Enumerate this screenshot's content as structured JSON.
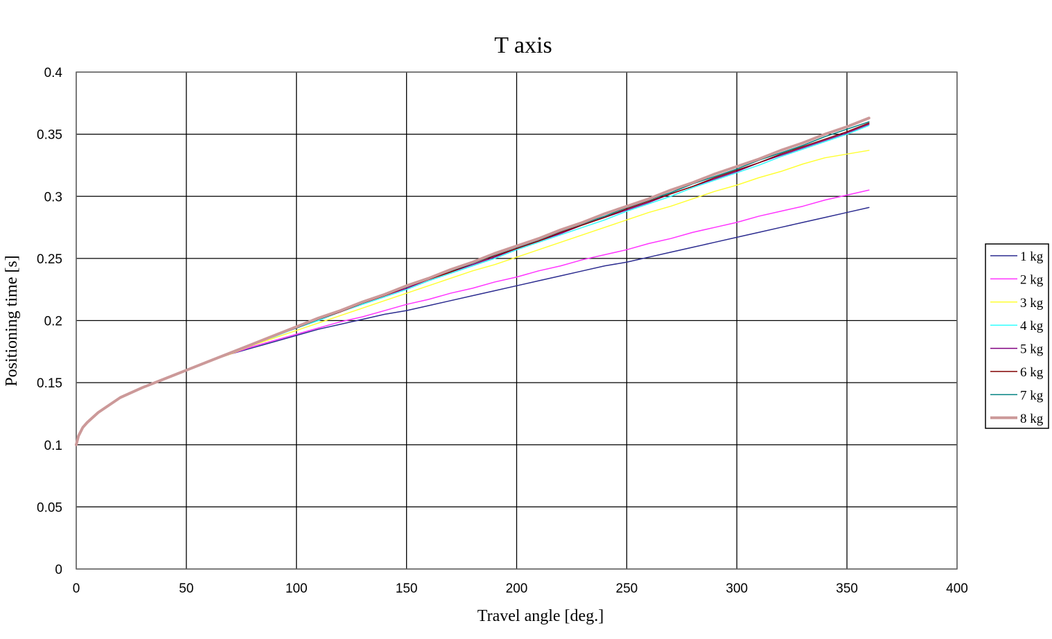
{
  "chart_data": {
    "type": "line",
    "title": "T axis",
    "xlabel": "Travel angle [deg.]",
    "ylabel": "Positioning time [s]",
    "xlim": [
      0,
      400
    ],
    "ylim": [
      0,
      0.4
    ],
    "xticks": [
      "0",
      "50",
      "100",
      "150",
      "200",
      "250",
      "300",
      "350",
      "400"
    ],
    "yticks": [
      "0",
      "0.05",
      "0.1",
      "0.15",
      "0.2",
      "0.25",
      "0.3",
      "0.35",
      "0.4"
    ],
    "grid": true,
    "legend_position": "right",
    "x": [
      0,
      1,
      3,
      5,
      10,
      20,
      30,
      40,
      50,
      60,
      70,
      80,
      90,
      100,
      110,
      120,
      130,
      140,
      150,
      160,
      170,
      180,
      190,
      200,
      210,
      220,
      230,
      240,
      250,
      260,
      270,
      280,
      290,
      300,
      310,
      320,
      330,
      340,
      350,
      360
    ],
    "series": [
      {
        "name": "1 kg",
        "color": "#2b2b8f",
        "width": 1.5,
        "values": [
          0.1,
          0.107,
          0.114,
          0.118,
          0.126,
          0.138,
          0.146,
          0.153,
          0.16,
          0.167,
          0.173,
          0.178,
          0.183,
          0.188,
          0.193,
          0.197,
          0.201,
          0.205,
          0.208,
          0.212,
          0.216,
          0.22,
          0.224,
          0.228,
          0.232,
          0.236,
          0.24,
          0.244,
          0.247,
          0.251,
          0.255,
          0.259,
          0.263,
          0.267,
          0.271,
          0.275,
          0.279,
          0.283,
          0.287,
          0.291
        ]
      },
      {
        "name": "2 kg",
        "color": "#ff33ff",
        "width": 1.5,
        "values": [
          0.1,
          0.107,
          0.114,
          0.118,
          0.126,
          0.138,
          0.146,
          0.153,
          0.16,
          0.167,
          0.173,
          0.179,
          0.184,
          0.189,
          0.194,
          0.199,
          0.203,
          0.208,
          0.213,
          0.217,
          0.222,
          0.226,
          0.231,
          0.235,
          0.24,
          0.244,
          0.249,
          0.253,
          0.257,
          0.262,
          0.266,
          0.271,
          0.275,
          0.279,
          0.284,
          0.288,
          0.292,
          0.297,
          0.301,
          0.305
        ]
      },
      {
        "name": "3 kg",
        "color": "#ffff33",
        "width": 1.5,
        "values": [
          0.1,
          0.107,
          0.114,
          0.118,
          0.126,
          0.138,
          0.146,
          0.153,
          0.16,
          0.167,
          0.173,
          0.18,
          0.186,
          0.192,
          0.198,
          0.204,
          0.21,
          0.216,
          0.222,
          0.228,
          0.234,
          0.24,
          0.245,
          0.251,
          0.257,
          0.263,
          0.269,
          0.275,
          0.281,
          0.287,
          0.292,
          0.298,
          0.304,
          0.309,
          0.315,
          0.32,
          0.326,
          0.331,
          0.334,
          0.337
        ]
      },
      {
        "name": "4 kg",
        "color": "#33ffff",
        "width": 1.5,
        "values": [
          0.1,
          0.107,
          0.114,
          0.118,
          0.126,
          0.138,
          0.146,
          0.153,
          0.16,
          0.167,
          0.174,
          0.181,
          0.187,
          0.194,
          0.2,
          0.207,
          0.213,
          0.219,
          0.225,
          0.232,
          0.238,
          0.244,
          0.25,
          0.257,
          0.263,
          0.269,
          0.275,
          0.281,
          0.288,
          0.294,
          0.3,
          0.307,
          0.313,
          0.319,
          0.325,
          0.332,
          0.338,
          0.344,
          0.35,
          0.357
        ]
      },
      {
        "name": "5 kg",
        "color": "#800080",
        "width": 1.5,
        "values": [
          0.1,
          0.107,
          0.114,
          0.118,
          0.126,
          0.138,
          0.146,
          0.153,
          0.16,
          0.167,
          0.174,
          0.181,
          0.188,
          0.194,
          0.201,
          0.207,
          0.214,
          0.22,
          0.226,
          0.233,
          0.239,
          0.245,
          0.251,
          0.258,
          0.264,
          0.27,
          0.277,
          0.283,
          0.289,
          0.295,
          0.302,
          0.308,
          0.314,
          0.32,
          0.327,
          0.333,
          0.339,
          0.345,
          0.351,
          0.358
        ]
      },
      {
        "name": "6 kg",
        "color": "#800000",
        "width": 1.5,
        "values": [
          0.1,
          0.107,
          0.114,
          0.118,
          0.126,
          0.138,
          0.146,
          0.153,
          0.16,
          0.167,
          0.174,
          0.181,
          0.188,
          0.194,
          0.201,
          0.207,
          0.214,
          0.22,
          0.227,
          0.233,
          0.239,
          0.246,
          0.252,
          0.258,
          0.264,
          0.271,
          0.277,
          0.283,
          0.29,
          0.296,
          0.302,
          0.308,
          0.315,
          0.321,
          0.327,
          0.334,
          0.34,
          0.346,
          0.352,
          0.359
        ]
      },
      {
        "name": "7 kg",
        "color": "#008080",
        "width": 1.5,
        "values": [
          0.1,
          0.107,
          0.114,
          0.118,
          0.126,
          0.138,
          0.146,
          0.153,
          0.16,
          0.167,
          0.174,
          0.181,
          0.188,
          0.194,
          0.201,
          0.208,
          0.214,
          0.221,
          0.227,
          0.234,
          0.24,
          0.246,
          0.253,
          0.259,
          0.265,
          0.272,
          0.278,
          0.284,
          0.291,
          0.297,
          0.303,
          0.31,
          0.316,
          0.322,
          0.329,
          0.335,
          0.341,
          0.348,
          0.354,
          0.36
        ]
      },
      {
        "name": "8 kg",
        "color": "#cc9999",
        "width": 4,
        "values": [
          0.1,
          0.107,
          0.114,
          0.118,
          0.126,
          0.138,
          0.146,
          0.153,
          0.16,
          0.167,
          0.174,
          0.181,
          0.188,
          0.195,
          0.202,
          0.208,
          0.215,
          0.221,
          0.228,
          0.234,
          0.241,
          0.247,
          0.254,
          0.26,
          0.266,
          0.273,
          0.279,
          0.286,
          0.292,
          0.298,
          0.305,
          0.311,
          0.318,
          0.324,
          0.33,
          0.337,
          0.343,
          0.35,
          0.356,
          0.363
        ]
      }
    ]
  }
}
